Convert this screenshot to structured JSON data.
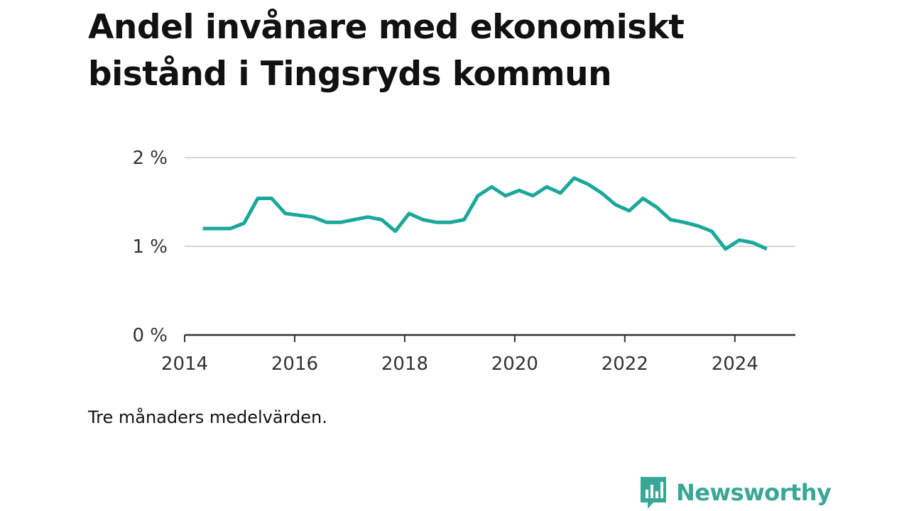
{
  "title": "Andel invånare med ekonomiskt bistånd i Tingsryds kommun",
  "note": "Tre månaders medelvärden.",
  "brand": {
    "name": "Newsworthy",
    "icon": "newsworthy-logo-icon",
    "color": "#3aa796"
  },
  "chart_data": {
    "type": "line",
    "title": "Andel invånare med ekonomiskt bistånd i Tingsryds kommun",
    "xlabel": "",
    "ylabel": "",
    "xlim": [
      2014.0,
      2025.1
    ],
    "ylim": [
      0,
      2
    ],
    "y_ticks": [
      {
        "value": 0,
        "label": "0 %"
      },
      {
        "value": 1,
        "label": "1 %"
      },
      {
        "value": 2,
        "label": "2 %"
      }
    ],
    "x_ticks": [
      {
        "value": 2014,
        "label": "2014"
      },
      {
        "value": 2016,
        "label": "2016"
      },
      {
        "value": 2018,
        "label": "2018"
      },
      {
        "value": 2020,
        "label": "2020"
      },
      {
        "value": 2022,
        "label": "2022"
      },
      {
        "value": 2024,
        "label": "2024"
      }
    ],
    "grid": "horizontal",
    "line_color": "#1aa89a",
    "series": [
      {
        "x": [
          2014.33,
          2014.58,
          2014.83,
          2015.08,
          2015.33,
          2015.58,
          2015.83,
          2016.08,
          2016.33,
          2016.58,
          2016.83,
          2017.08,
          2017.33,
          2017.58,
          2017.83,
          2018.08,
          2018.33,
          2018.58,
          2018.83,
          2019.08,
          2019.33,
          2019.58,
          2019.83,
          2020.08,
          2020.33,
          2020.58,
          2020.83,
          2021.08,
          2021.33,
          2021.58,
          2021.83,
          2022.08,
          2022.33,
          2022.58,
          2022.83,
          2023.08,
          2023.33,
          2023.58,
          2023.83,
          2024.08,
          2024.33,
          2024.58
        ],
        "values": [
          1.2,
          1.2,
          1.2,
          1.26,
          1.54,
          1.54,
          1.37,
          1.35,
          1.33,
          1.27,
          1.27,
          1.3,
          1.33,
          1.3,
          1.17,
          1.37,
          1.3,
          1.27,
          1.27,
          1.3,
          1.57,
          1.67,
          1.57,
          1.63,
          1.57,
          1.67,
          1.6,
          1.77,
          1.7,
          1.6,
          1.47,
          1.4,
          1.54,
          1.44,
          1.3,
          1.27,
          1.23,
          1.17,
          0.97,
          1.07,
          1.04,
          0.97
        ]
      }
    ]
  }
}
